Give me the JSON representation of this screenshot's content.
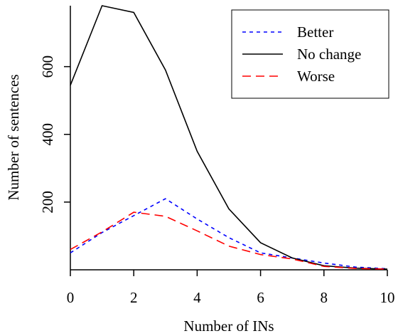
{
  "chart_data": {
    "type": "line",
    "title": "",
    "xlabel": "Number of INs",
    "ylabel": "Number of sentences",
    "xlim": [
      0,
      10
    ],
    "ylim": [
      0,
      780
    ],
    "x_ticks": [
      0,
      2,
      4,
      6,
      8,
      10
    ],
    "y_ticks": [
      200,
      400,
      600
    ],
    "grid": false,
    "legend_position": "top-right",
    "x": [
      0,
      1,
      2,
      3,
      4,
      5,
      6,
      7,
      8,
      9,
      10
    ],
    "series": [
      {
        "name": "Better",
        "color": "#0000ff",
        "dash": "short-dash",
        "values": [
          50,
          110,
          160,
          210,
          150,
          95,
          50,
          35,
          20,
          8,
          3
        ]
      },
      {
        "name": "No change",
        "color": "#000000",
        "dash": "solid",
        "values": [
          545,
          780,
          760,
          590,
          350,
          180,
          80,
          35,
          12,
          5,
          2
        ]
      },
      {
        "name": "Worse",
        "color": "#ff0000",
        "dash": "long-dash",
        "values": [
          60,
          112,
          170,
          158,
          115,
          70,
          45,
          32,
          10,
          4,
          2
        ]
      }
    ]
  }
}
